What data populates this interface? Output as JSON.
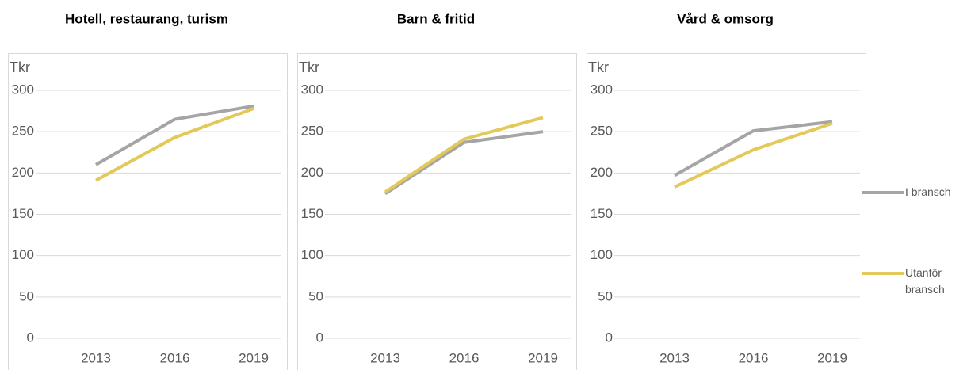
{
  "chart_data": [
    {
      "type": "line",
      "title": "Hotell, restaurang, turism",
      "ylabel": "Tkr",
      "categories": [
        "2013",
        "2016",
        "2019"
      ],
      "series": [
        {
          "color": "#a5a5a5",
          "values": [
            210,
            265,
            281
          ]
        },
        {
          "color": "#e2c95a",
          "values": [
            191,
            243,
            278
          ]
        }
      ],
      "ylim": [
        0,
        300
      ],
      "yticks": [
        0,
        50,
        100,
        150,
        200,
        250,
        300
      ],
      "grid": true
    },
    {
      "type": "line",
      "title": "Barn & fritid",
      "ylabel": "Tkr",
      "categories": [
        "2013",
        "2016",
        "2019"
      ],
      "series": [
        {
          "color": "#a5a5a5",
          "values": [
            175,
            237,
            250
          ]
        },
        {
          "color": "#e2c95a",
          "values": [
            177,
            241,
            267
          ]
        }
      ],
      "ylim": [
        0,
        300
      ],
      "yticks": [
        0,
        50,
        100,
        150,
        200,
        250,
        300
      ],
      "grid": true
    },
    {
      "type": "line",
      "title": "Vård & omsorg",
      "ylabel": "Tkr",
      "categories": [
        "2013",
        "2016",
        "2019"
      ],
      "series": [
        {
          "name": "I bransch",
          "color": "#a5a5a5",
          "values": [
            197,
            251,
            262
          ]
        },
        {
          "name": "Utanför bransch",
          "color": "#e2c95a",
          "values": [
            183,
            228,
            260
          ]
        }
      ],
      "ylim": [
        0,
        300
      ],
      "yticks": [
        0,
        50,
        100,
        150,
        200,
        250,
        300
      ],
      "grid": true,
      "legend": "right"
    }
  ]
}
